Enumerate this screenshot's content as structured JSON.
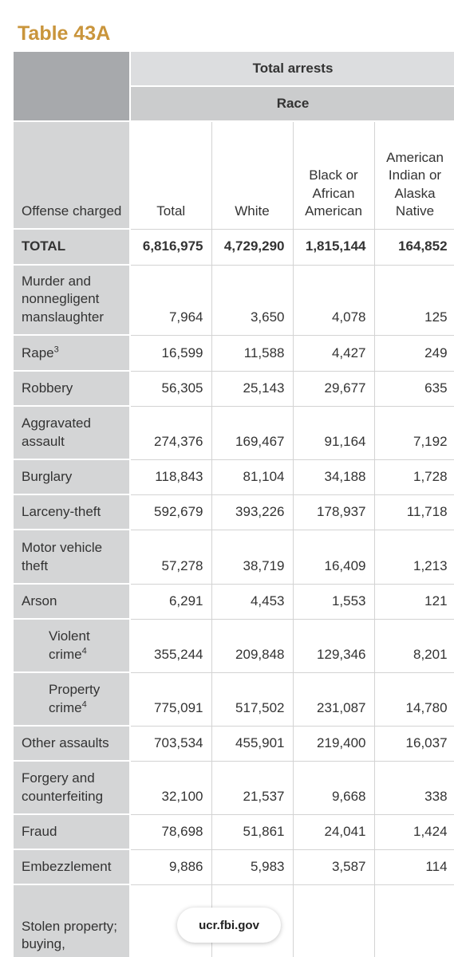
{
  "title": "Table 43A",
  "header": {
    "group": "Total arrests",
    "subgroup": "Race",
    "columns": [
      "Offense charged",
      "Total",
      "White",
      "Black or African American",
      "American Indian or Alaska Native"
    ]
  },
  "rows": [
    {
      "offense": "TOTAL",
      "values": [
        "6,816,975",
        "4,729,290",
        "1,815,144",
        "164,852"
      ]
    },
    {
      "offense": "Murder and nonnegligent manslaughter",
      "values": [
        "7,964",
        "3,650",
        "4,078",
        "125"
      ]
    },
    {
      "offense": "Rape",
      "footnote": "3",
      "values": [
        "16,599",
        "11,588",
        "4,427",
        "249"
      ]
    },
    {
      "offense": "Robbery",
      "values": [
        "56,305",
        "25,143",
        "29,677",
        "635"
      ]
    },
    {
      "offense": "Aggravated assault",
      "values": [
        "274,376",
        "169,467",
        "91,164",
        "7,192"
      ]
    },
    {
      "offense": "Burglary",
      "values": [
        "118,843",
        "81,104",
        "34,188",
        "1,728"
      ]
    },
    {
      "offense": "Larceny-theft",
      "values": [
        "592,679",
        "393,226",
        "178,937",
        "11,718"
      ]
    },
    {
      "offense": "Motor vehicle theft",
      "values": [
        "57,278",
        "38,719",
        "16,409",
        "1,213"
      ]
    },
    {
      "offense": "Arson",
      "values": [
        "6,291",
        "4,453",
        "1,553",
        "121"
      ]
    },
    {
      "offense": "Violent crime",
      "footnote": "4",
      "values": [
        "355,244",
        "209,848",
        "129,346",
        "8,201"
      ]
    },
    {
      "offense": "Property crime",
      "footnote": "4",
      "values": [
        "775,091",
        "517,502",
        "231,087",
        "14,780"
      ]
    },
    {
      "offense": "Other assaults",
      "values": [
        "703,534",
        "455,901",
        "219,400",
        "16,037"
      ]
    },
    {
      "offense": "Forgery and counterfeiting",
      "values": [
        "32,100",
        "21,537",
        "9,668",
        "338"
      ]
    },
    {
      "offense": "Fraud",
      "values": [
        "78,698",
        "51,861",
        "24,041",
        "1,424"
      ]
    },
    {
      "offense": "Embezzlement",
      "values": [
        "9,886",
        "5,983",
        "3,587",
        "114"
      ]
    },
    {
      "offense": "Stolen property; buying, receiving,",
      "values": []
    }
  ],
  "footer": {
    "url": "ucr.fbi.gov"
  }
}
